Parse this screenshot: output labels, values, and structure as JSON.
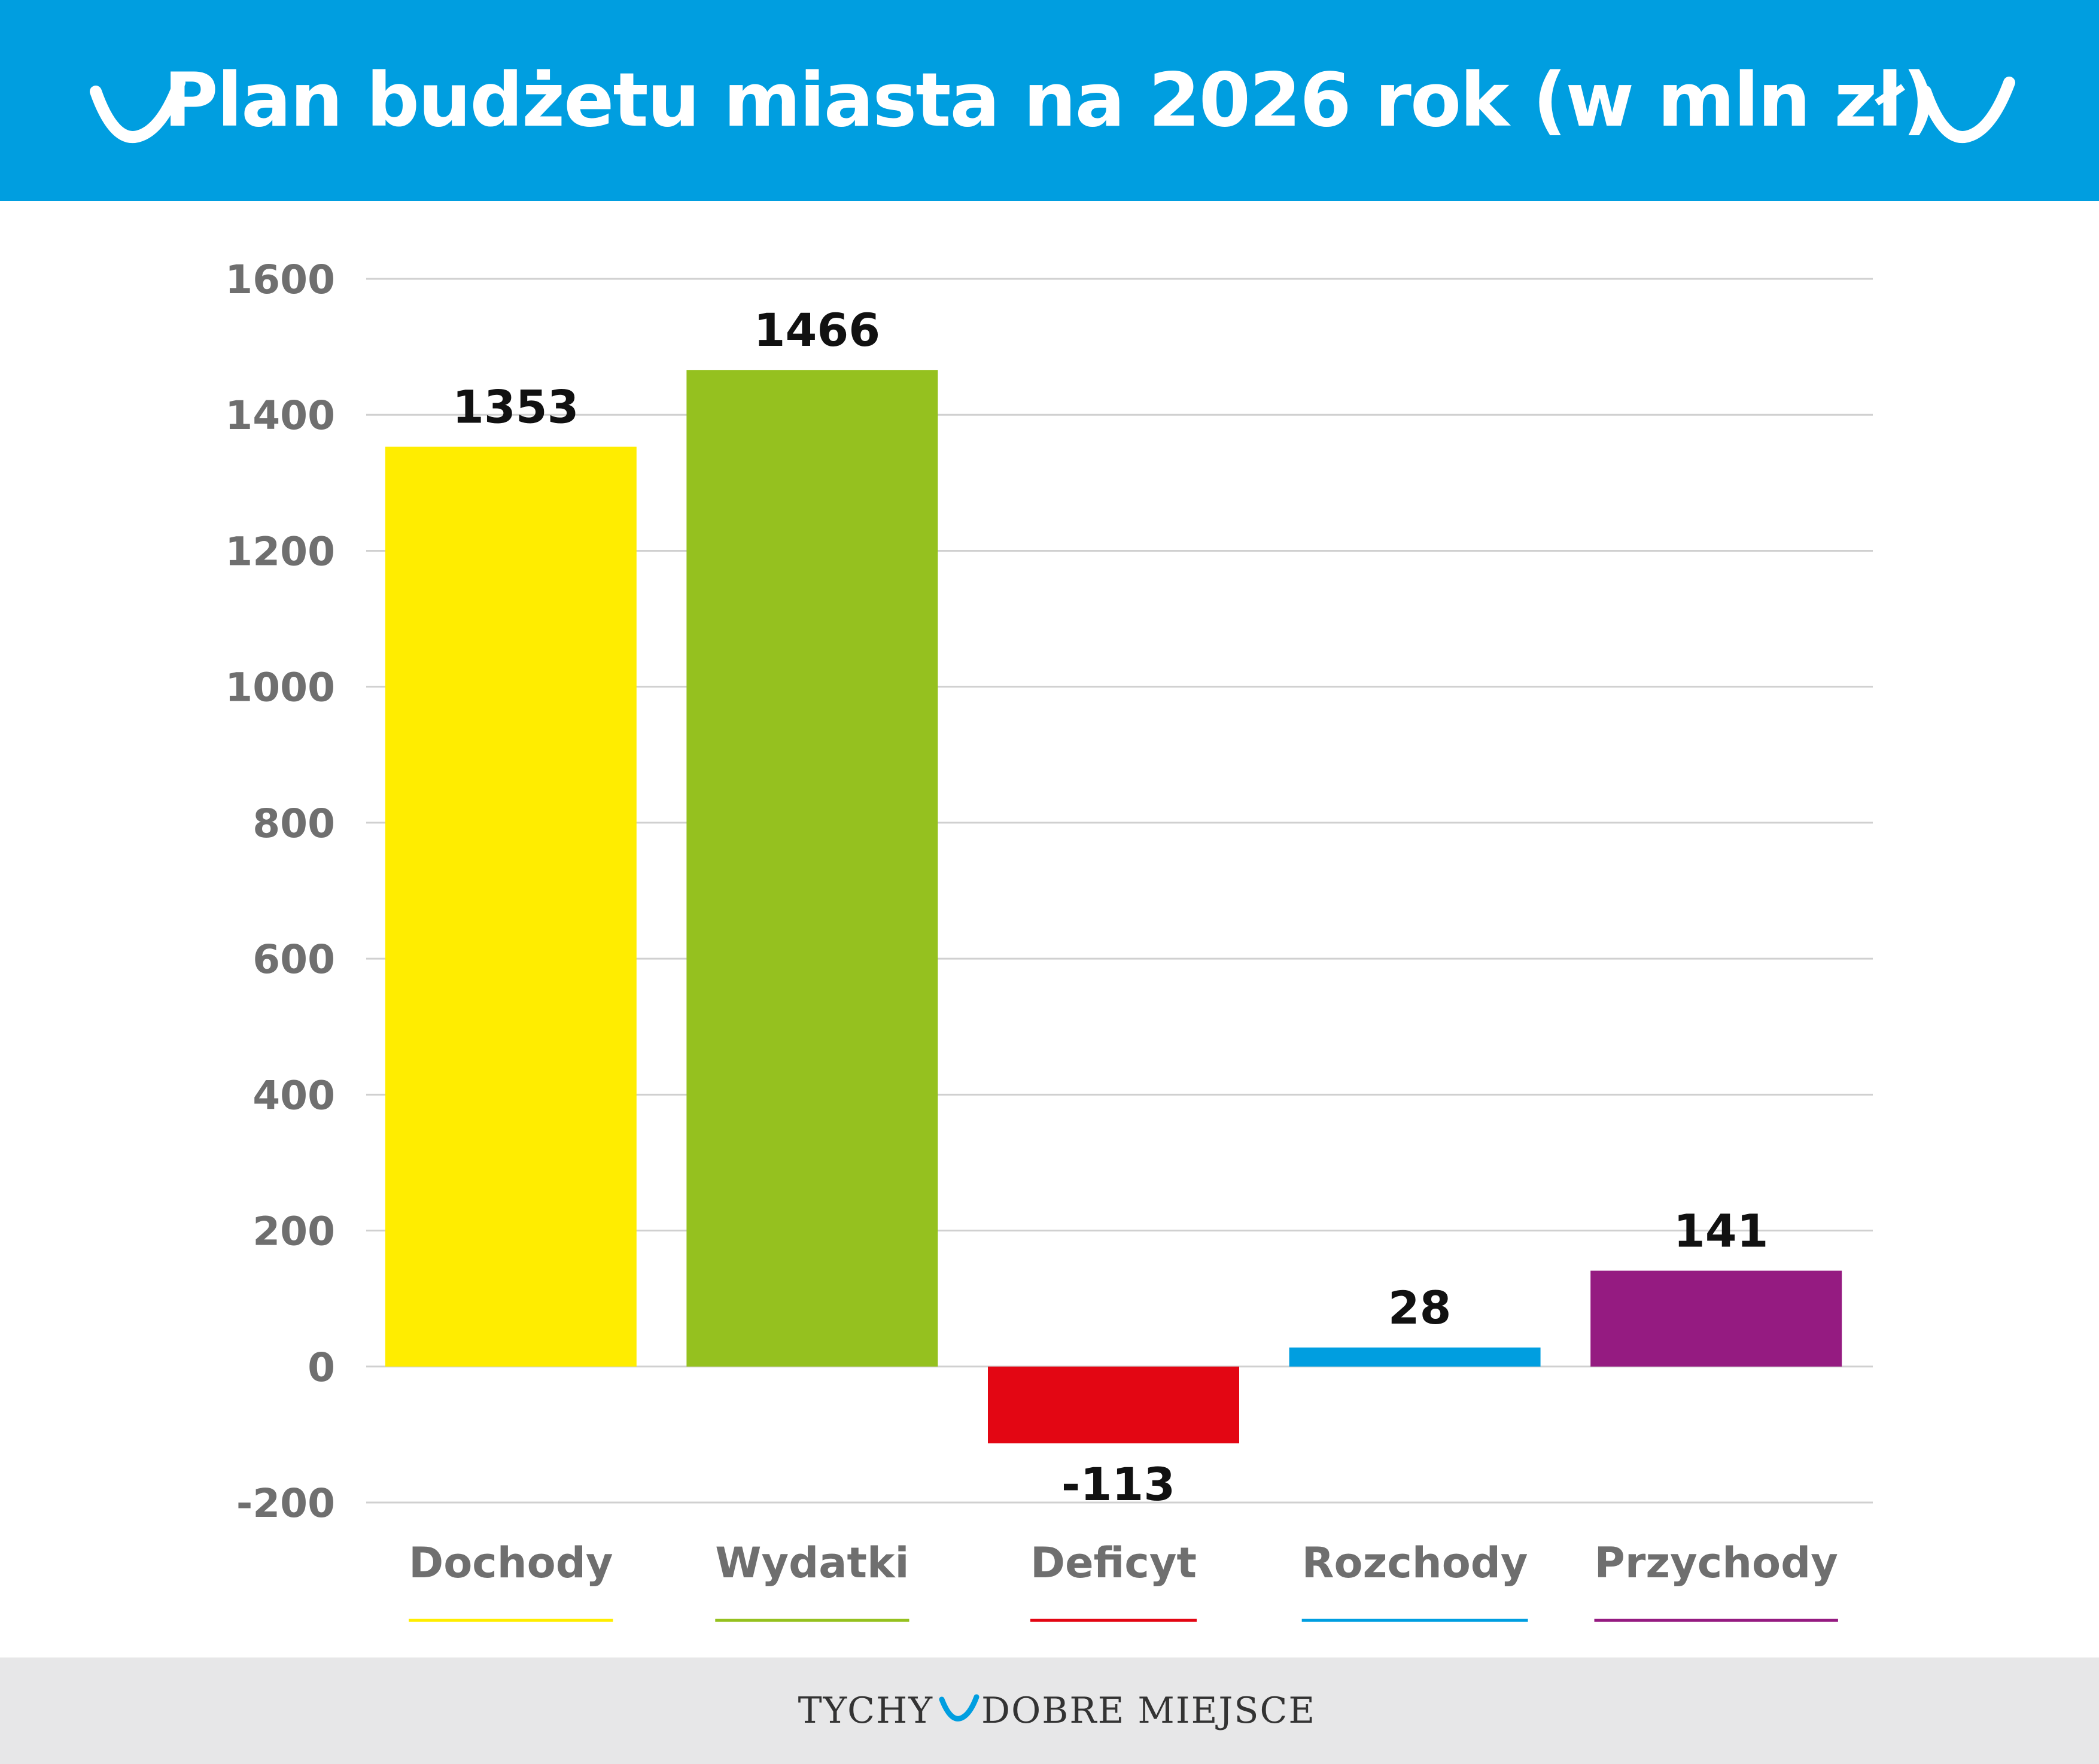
{
  "header": {
    "title": "Plan budżetu miasta na 2026 rok (w mln zł)",
    "background": "#009ee0",
    "icon": "checkmark-icon"
  },
  "chart_data": {
    "type": "bar",
    "title": "Plan budżetu miasta na 2026 rok (w mln zł)",
    "categories": [
      "Dochody",
      "Wydatki",
      "Deficyt",
      "Rozchody",
      "Przychody"
    ],
    "values": [
      1353,
      1466,
      -113,
      28,
      141
    ],
    "value_labels": [
      "1353",
      "1466",
      "-113",
      "28",
      "141"
    ],
    "colors": [
      "#ffed00",
      "#95c11f",
      "#e30613",
      "#009ee0",
      "#951b81"
    ],
    "yticks": [
      "1600",
      "1400",
      "1200",
      "1000",
      "800",
      "600",
      "400",
      "200",
      "0",
      "-200"
    ],
    "ylim": [
      -200,
      1600
    ],
    "grid": true,
    "legend": "none"
  },
  "footer": {
    "brand_left": "TYCHY",
    "brand_right": "DOBRE MIEJSCE",
    "background": "#e7e7e8",
    "icon": "checkmark-icon"
  }
}
